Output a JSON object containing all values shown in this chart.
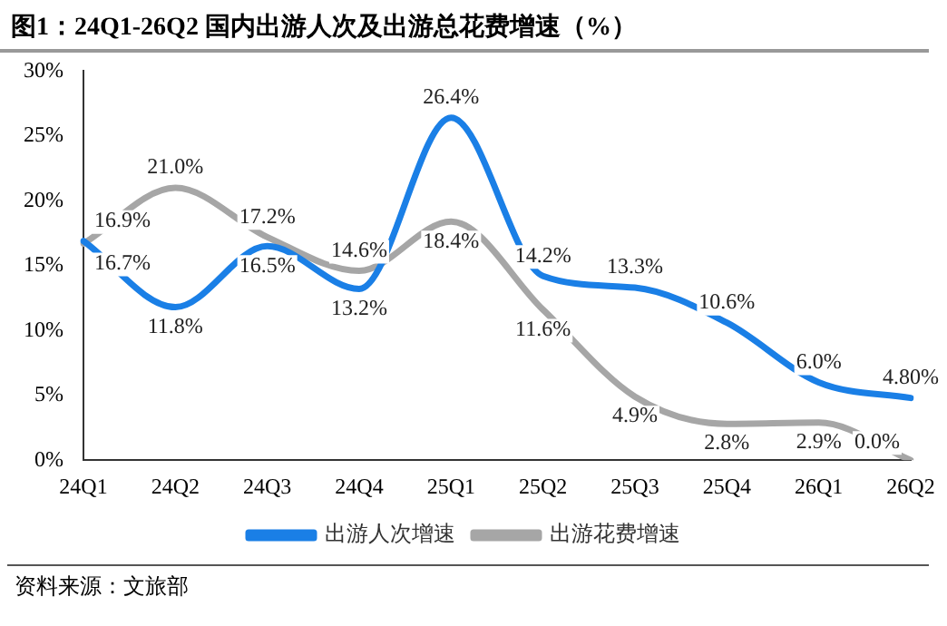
{
  "chart_data": {
    "type": "line",
    "title": "图1：24Q1-26Q2 国内出游人次及出游总花费增速（%）",
    "categories": [
      "24Q1",
      "24Q2",
      "24Q3",
      "24Q4",
      "25Q1",
      "25Q2",
      "25Q3",
      "25Q4",
      "26Q1",
      "26Q2"
    ],
    "series": [
      {
        "name": "出游人次增速",
        "color": "#1a7fe6",
        "values": [
          16.9,
          11.8,
          16.5,
          13.2,
          26.4,
          14.2,
          13.3,
          10.6,
          6.0,
          4.8
        ],
        "value_labels": [
          "16.9%",
          "11.8%",
          "16.5%",
          "13.2%",
          "26.4%",
          "14.2%",
          "13.3%",
          "10.6%",
          "6.0%",
          "4.80%"
        ]
      },
      {
        "name": "出游花费增速",
        "color": "#a6a6a6",
        "values": [
          16.7,
          21.0,
          17.2,
          14.6,
          18.4,
          11.6,
          4.9,
          2.8,
          2.9,
          0.0
        ],
        "value_labels": [
          "16.7%",
          "21.0%",
          "17.2%",
          "14.6%",
          "18.4%",
          "11.6%",
          "4.9%",
          "2.8%",
          "2.9%",
          "0.0%"
        ]
      }
    ],
    "ylim": [
      0,
      30
    ],
    "yticks": [
      {
        "value": 0,
        "label": "0%"
      },
      {
        "value": 5,
        "label": "5%"
      },
      {
        "value": 10,
        "label": "10%"
      },
      {
        "value": 15,
        "label": "15%"
      },
      {
        "value": 20,
        "label": "20%"
      },
      {
        "value": 25,
        "label": "25%"
      },
      {
        "value": 30,
        "label": "30%"
      }
    ],
    "grid": false,
    "legend": "bottom",
    "marker": "none",
    "line_style": "solid",
    "annotations": [
      "资料来源：文旅部"
    ]
  }
}
